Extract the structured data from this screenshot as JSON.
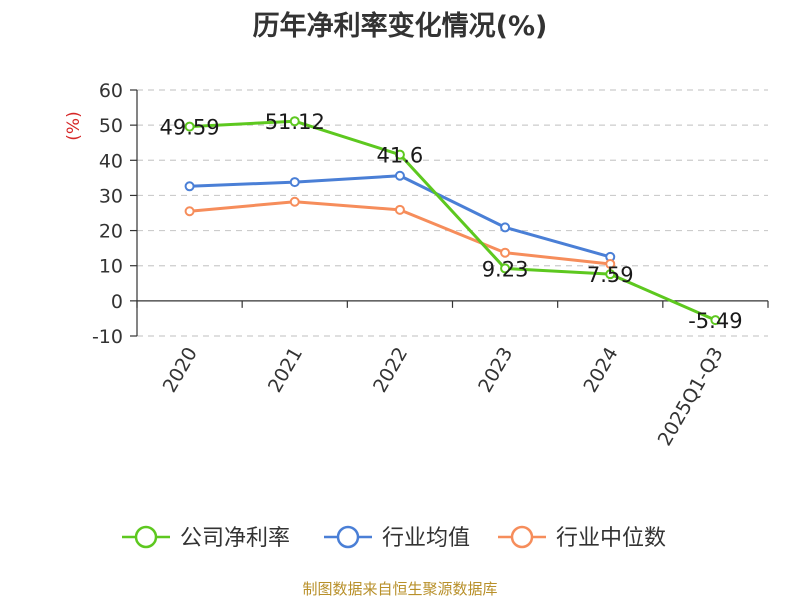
{
  "chart_data": {
    "type": "line",
    "title": "历年净利率变化情况(%)",
    "ylabel": "(%)",
    "xlabel": "",
    "categories": [
      "2020",
      "2021",
      "2022",
      "2023",
      "2024",
      "2025Q1-Q3"
    ],
    "ylim": [
      -10,
      60
    ],
    "yticks": [
      -10,
      0,
      10,
      20,
      30,
      40,
      50,
      60
    ],
    "grid": true,
    "legend_position": "bottom",
    "series": [
      {
        "name": "公司净利率",
        "color": "#5dc81f",
        "values": [
          49.59,
          51.12,
          41.6,
          9.23,
          7.59,
          -5.49
        ],
        "labels": [
          "49.59",
          "51.12",
          "41.6",
          "9.23",
          "7.59",
          "-5.49"
        ]
      },
      {
        "name": "行业均值",
        "color": "#4a7fd6",
        "values": [
          32.6,
          33.8,
          35.6,
          20.9,
          12.5,
          null
        ]
      },
      {
        "name": "行业中位数",
        "color": "#f68d5b",
        "values": [
          25.5,
          28.2,
          25.9,
          13.7,
          10.5,
          null
        ]
      }
    ]
  },
  "source": "制图数据来自恒生聚源数据库"
}
